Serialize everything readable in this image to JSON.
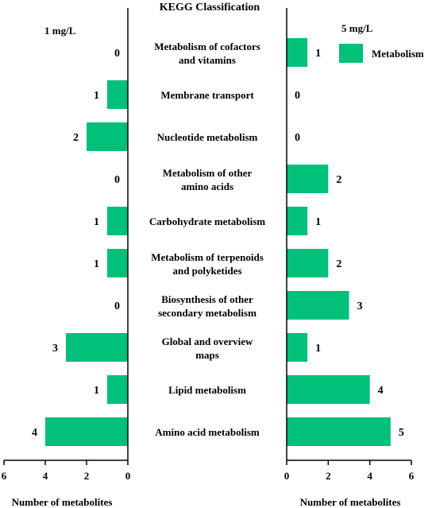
{
  "chart_data": {
    "type": "bar",
    "title": "KEGG Classification",
    "categories": [
      [
        "Metabolism of cofactors",
        "and vitamins"
      ],
      [
        "Membrane transport"
      ],
      [
        "Nucleotide metabolism"
      ],
      [
        "Metabolism of other",
        "amino acids"
      ],
      [
        "Carbohydrate metabolism"
      ],
      [
        "Metabolism of terpenoids",
        "and polyketides"
      ],
      [
        "Biosynthesis of other",
        "secondary metabolism"
      ],
      [
        "Global and overview",
        "maps"
      ],
      [
        "Lipid metabolism"
      ],
      [
        "Amino acid metabolism"
      ]
    ],
    "series": [
      {
        "name": "1 mg/L",
        "values": [
          0,
          1,
          2,
          0,
          1,
          1,
          0,
          3,
          1,
          4
        ]
      },
      {
        "name": "5 mg/L",
        "values": [
          1,
          0,
          0,
          2,
          1,
          2,
          3,
          1,
          4,
          5
        ]
      }
    ],
    "legend": {
      "label": "Metabolism",
      "position": "top-right"
    },
    "color": "#00c07a",
    "left_xaxis": {
      "label": "Number of metabolites",
      "xlim": [
        6,
        0
      ],
      "ticks": [
        6,
        4,
        2,
        0
      ],
      "reversed": true
    },
    "right_xaxis": {
      "label": "Number of metabolites",
      "xlim": [
        0,
        6
      ],
      "ticks": [
        0,
        2,
        4,
        6
      ]
    },
    "grid": false
  }
}
